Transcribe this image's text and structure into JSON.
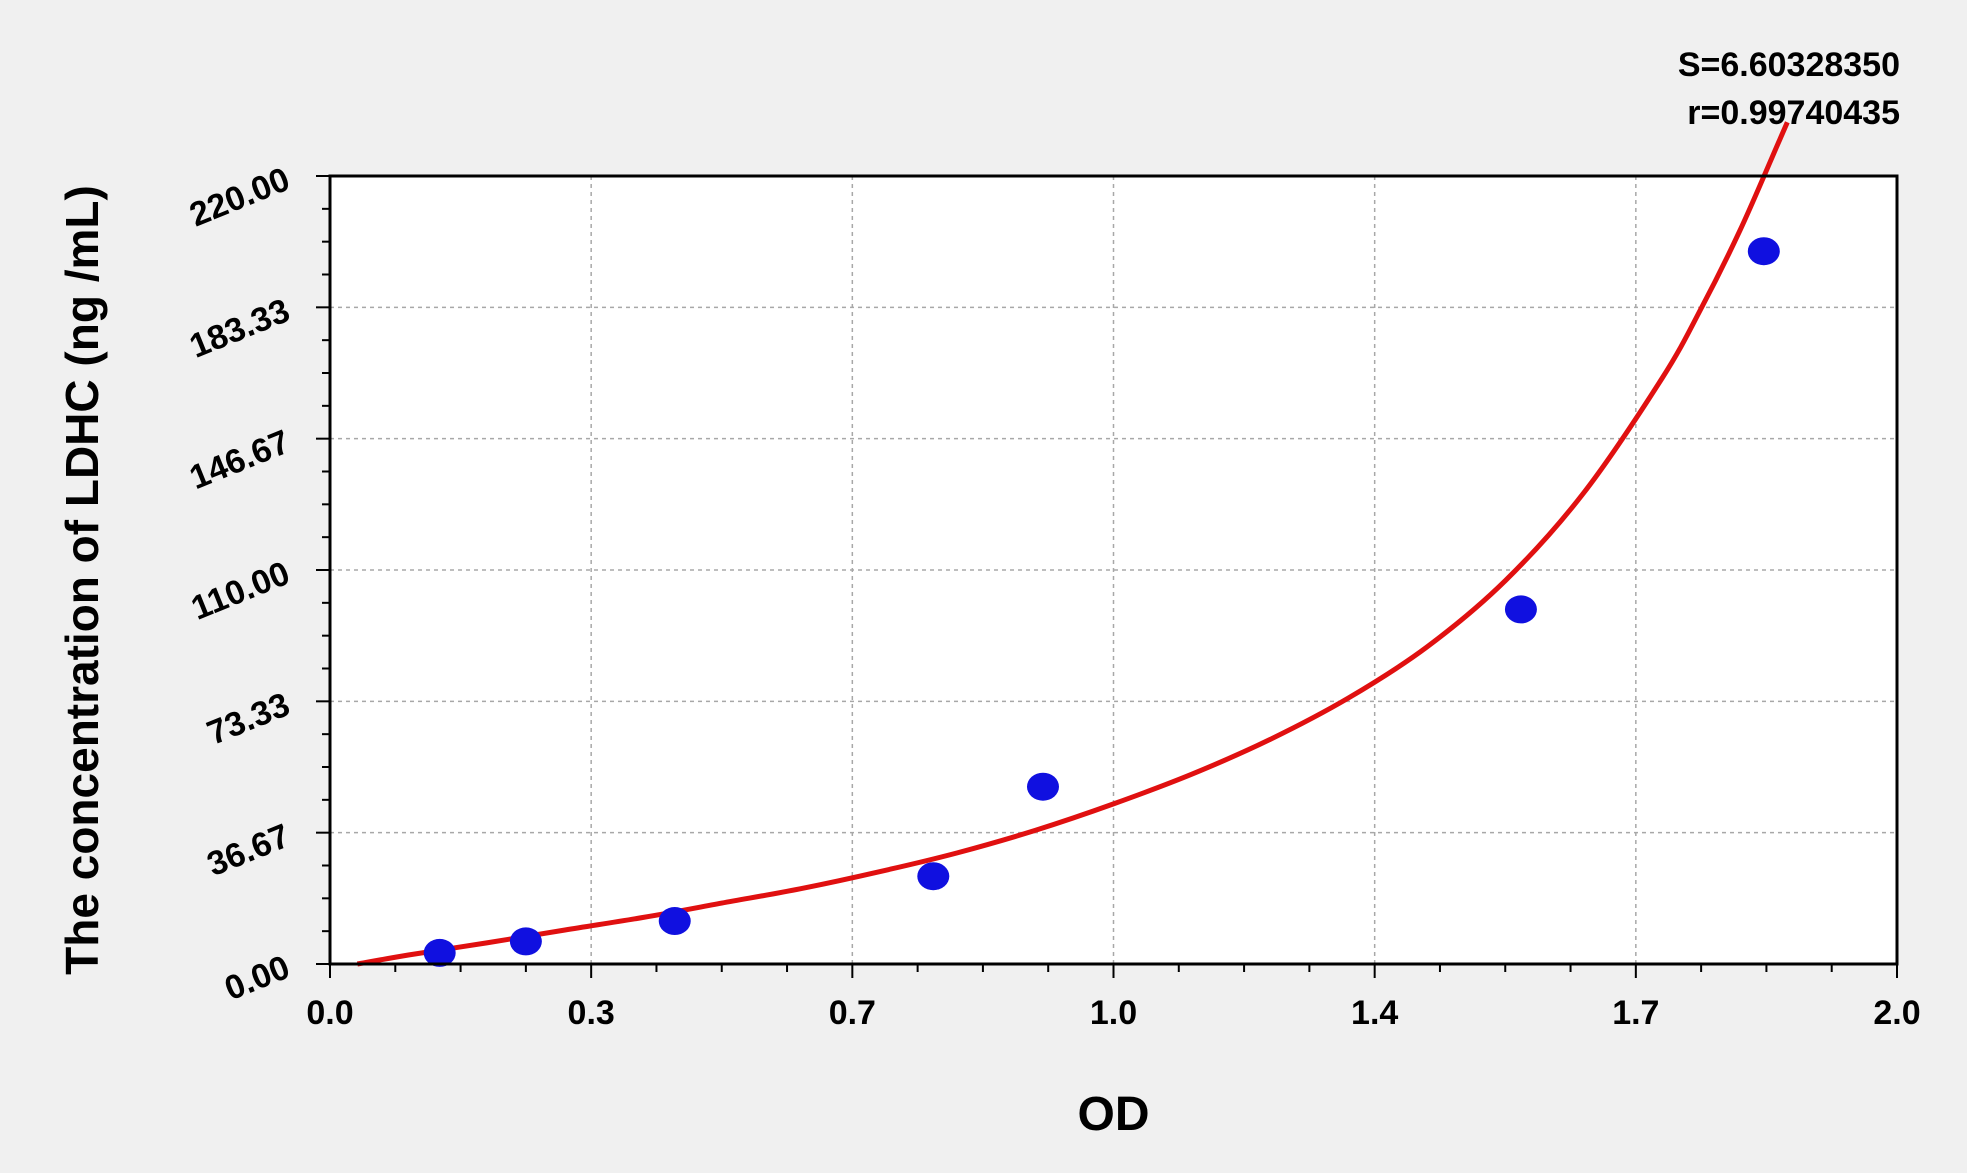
{
  "chart_data": {
    "type": "scatter",
    "title": "",
    "xlabel": "OD",
    "ylabel": "The concentration of LDHC (ng /mL)",
    "xlim": [
      0.0,
      2.0
    ],
    "ylim": [
      0.0,
      220.0
    ],
    "x_ticks": [
      "0.0",
      "0.3",
      "0.7",
      "1.0",
      "1.4",
      "1.7",
      "2.0"
    ],
    "y_ticks": [
      "0.00",
      "36.67",
      "73.33",
      "110.00",
      "146.67",
      "183.33",
      "220.00"
    ],
    "grid": true,
    "stats": [
      "S=6.60328350",
      "r=0.99740435"
    ],
    "colors": {
      "points": "#1010e0",
      "curve": "#e01010",
      "background": "#f0f0f0",
      "plot_bg": "#ffffff"
    },
    "series": [
      {
        "kind": "points",
        "x": [
          0.14,
          0.25,
          0.44,
          0.77,
          0.91,
          1.52,
          1.83
        ],
        "y": [
          3.1,
          6.3,
          12.0,
          24.5,
          49.5,
          99.0,
          199.0
        ]
      },
      {
        "kind": "fit-curve",
        "x": [
          0.035,
          0.1,
          0.2,
          0.3,
          0.4,
          0.5,
          0.6,
          0.7,
          0.8,
          0.9,
          1.0,
          1.1,
          1.2,
          1.3,
          1.4,
          1.5,
          1.6,
          1.7,
          1.75,
          1.8,
          1.85,
          1.86
        ],
        "y": [
          0.0,
          2.5,
          5.9,
          9.5,
          13.0,
          17.0,
          21.0,
          25.7,
          31.0,
          37.3,
          44.7,
          53.0,
          62.7,
          74.3,
          88.5,
          107.0,
          131.5,
          163.5,
          183.0,
          205.0,
          230.0,
          235.0
        ]
      }
    ]
  }
}
